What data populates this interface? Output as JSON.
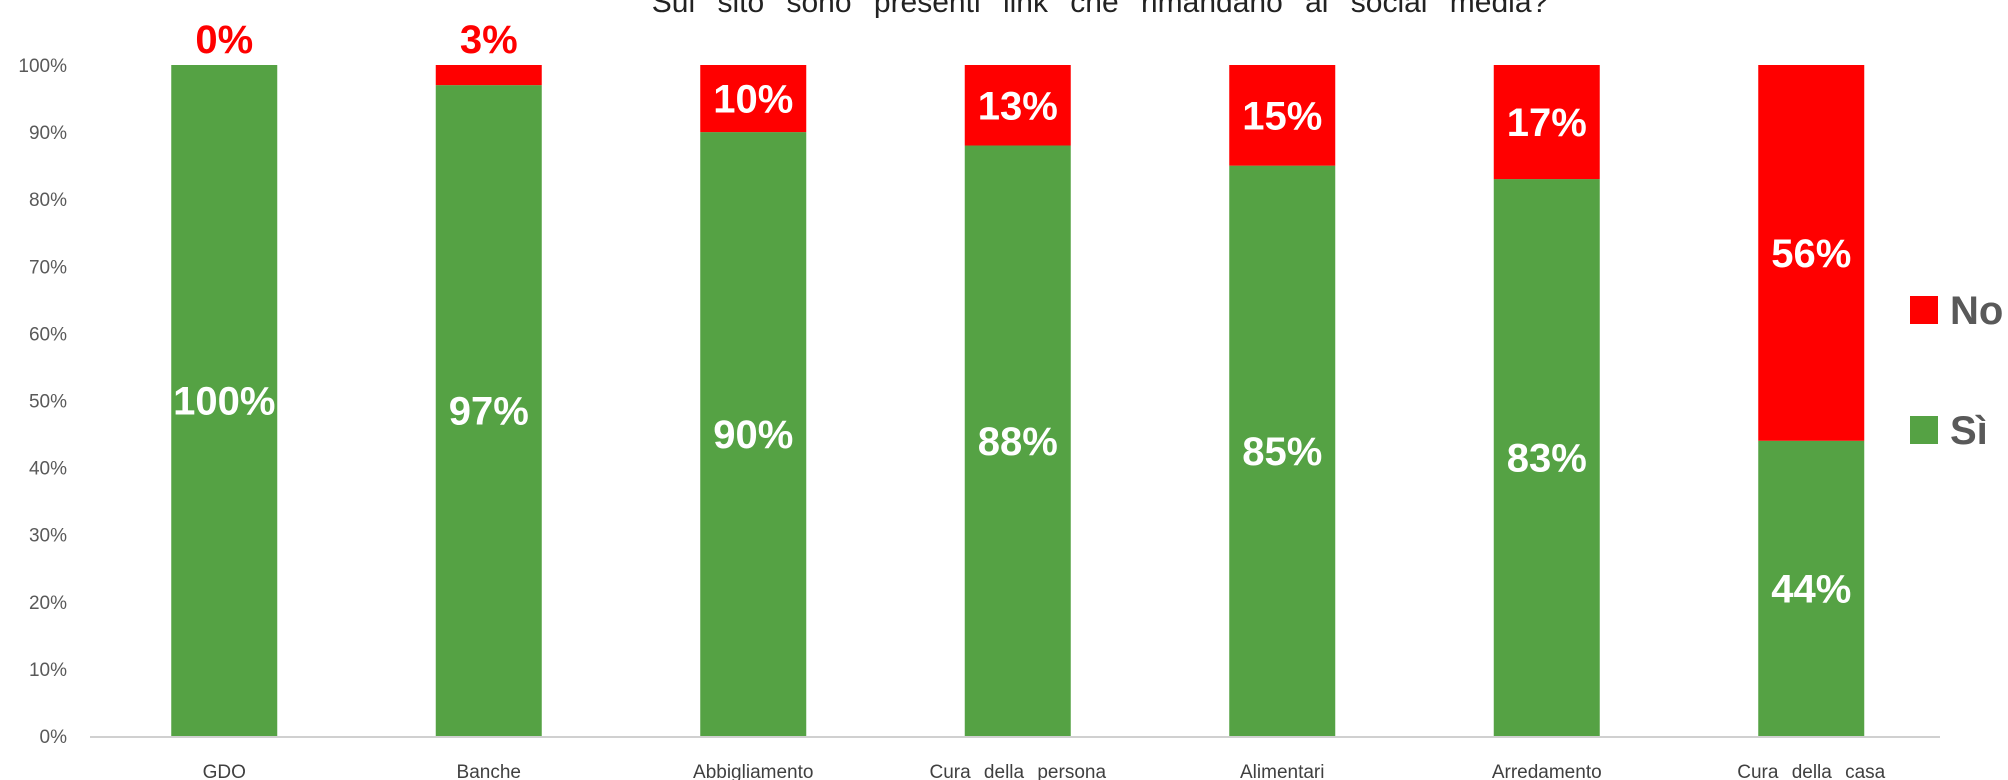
{
  "chart_data": {
    "type": "bar",
    "stacked": true,
    "title": "Sul sito sono presenti link che rimandano ai social media?",
    "categories": [
      "GDO",
      "Banche",
      "Abbigliamento",
      "Cura della persona",
      "Alimentari",
      "Arredamento",
      "Cura della casa"
    ],
    "series": [
      {
        "name": "Sì",
        "color": "#55a244",
        "values": [
          100,
          97,
          90,
          88,
          85,
          83,
          44
        ]
      },
      {
        "name": "No",
        "color": "#ff0000",
        "values": [
          0,
          3,
          10,
          13,
          15,
          17,
          56
        ]
      }
    ],
    "data_labels": {
      "Sì": [
        "100%",
        "97%",
        "90%",
        "88%",
        "85%",
        "83%",
        "44%"
      ],
      "No": [
        "0%",
        "3%",
        "10%",
        "13%",
        "15%",
        "17%",
        "56%"
      ]
    },
    "ylim": [
      0,
      100
    ],
    "yticks": [
      "0%",
      "10%",
      "20%",
      "30%",
      "40%",
      "50%",
      "60%",
      "70%",
      "80%",
      "90%",
      "100%"
    ],
    "legend": {
      "position": "right",
      "entries": [
        "No",
        "Sì"
      ]
    },
    "grid": false
  }
}
